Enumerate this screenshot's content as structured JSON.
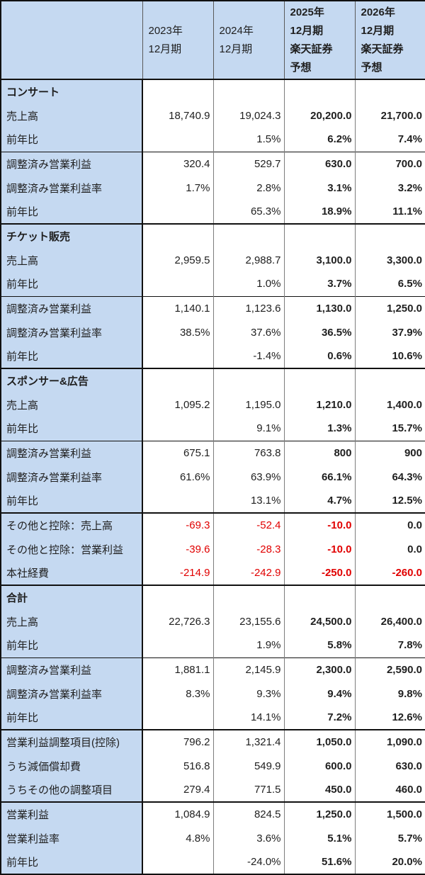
{
  "colors": {
    "label_bg": "#c5d9f1",
    "negative_text": "#e10000",
    "border_dark": "#111111",
    "border_gray": "#7d7d7d"
  },
  "chart_data": {
    "type": "table",
    "title": "",
    "columns": [
      "",
      "2023年12月期",
      "2024年12月期",
      "2025年12月期 楽天証券予想",
      "2026年12月期 楽天証券予想"
    ],
    "header": {
      "cells": [
        {
          "lines": [],
          "bold": false
        },
        {
          "lines": [
            "2023年",
            "12月期"
          ],
          "bold": false
        },
        {
          "lines": [
            "2024年",
            "12月期"
          ],
          "bold": false
        },
        {
          "lines": [
            "2025年",
            "12月期",
            "楽天証券",
            "予想"
          ],
          "bold": true
        },
        {
          "lines": [
            "2026年",
            "12月期",
            "楽天証券",
            "予想"
          ],
          "bold": true
        }
      ]
    },
    "rows": [
      {
        "label": "コンサート",
        "label_bold": true,
        "values": [
          "",
          "",
          "",
          ""
        ],
        "red": [
          0,
          0,
          0,
          0
        ],
        "border_top": "none"
      },
      {
        "label": "売上高",
        "label_bold": false,
        "values": [
          "18,740.9",
          "19,024.3",
          "20,200.0",
          "21,700.0"
        ],
        "red": [
          0,
          0,
          0,
          0
        ],
        "border_top": "none"
      },
      {
        "label": "前年比",
        "label_bold": false,
        "values": [
          "",
          "1.5%",
          "6.2%",
          "7.4%"
        ],
        "red": [
          0,
          0,
          0,
          0
        ],
        "border_top": "none"
      },
      {
        "label": "調整済み営業利益",
        "label_bold": false,
        "values": [
          "320.4",
          "529.7",
          "630.0",
          "700.0"
        ],
        "red": [
          0,
          0,
          0,
          0
        ],
        "border_top": "thin"
      },
      {
        "label": "調整済み営業利益率",
        "label_bold": false,
        "values": [
          "1.7%",
          "2.8%",
          "3.1%",
          "3.2%"
        ],
        "red": [
          0,
          0,
          0,
          0
        ],
        "border_top": "none"
      },
      {
        "label": "前年比",
        "label_bold": false,
        "values": [
          "",
          "65.3%",
          "18.9%",
          "11.1%"
        ],
        "red": [
          0,
          0,
          0,
          0
        ],
        "border_top": "none"
      },
      {
        "label": "チケット販売",
        "label_bold": true,
        "values": [
          "",
          "",
          "",
          ""
        ],
        "red": [
          0,
          0,
          0,
          0
        ],
        "border_top": "thick"
      },
      {
        "label": "売上高",
        "label_bold": false,
        "values": [
          "2,959.5",
          "2,988.7",
          "3,100.0",
          "3,300.0"
        ],
        "red": [
          0,
          0,
          0,
          0
        ],
        "border_top": "none"
      },
      {
        "label": "前年比",
        "label_bold": false,
        "values": [
          "",
          "1.0%",
          "3.7%",
          "6.5%"
        ],
        "red": [
          0,
          0,
          0,
          0
        ],
        "border_top": "none"
      },
      {
        "label": "調整済み営業利益",
        "label_bold": false,
        "values": [
          "1,140.1",
          "1,123.6",
          "1,130.0",
          "1,250.0"
        ],
        "red": [
          0,
          0,
          0,
          0
        ],
        "border_top": "thin"
      },
      {
        "label": "調整済み営業利益率",
        "label_bold": false,
        "values": [
          "38.5%",
          "37.6%",
          "36.5%",
          "37.9%"
        ],
        "red": [
          0,
          0,
          0,
          0
        ],
        "border_top": "none"
      },
      {
        "label": "前年比",
        "label_bold": false,
        "values": [
          "",
          "-1.4%",
          "0.6%",
          "10.6%"
        ],
        "red": [
          0,
          0,
          0,
          0
        ],
        "border_top": "none"
      },
      {
        "label": "スポンサー&広告",
        "label_bold": true,
        "values": [
          "",
          "",
          "",
          ""
        ],
        "red": [
          0,
          0,
          0,
          0
        ],
        "border_top": "thick"
      },
      {
        "label": "売上高",
        "label_bold": false,
        "values": [
          "1,095.2",
          "1,195.0",
          "1,210.0",
          "1,400.0"
        ],
        "red": [
          0,
          0,
          0,
          0
        ],
        "border_top": "none"
      },
      {
        "label": "前年比",
        "label_bold": false,
        "values": [
          "",
          "9.1%",
          "1.3%",
          "15.7%"
        ],
        "red": [
          0,
          0,
          0,
          0
        ],
        "border_top": "none"
      },
      {
        "label": "調整済み営業利益",
        "label_bold": false,
        "values": [
          "675.1",
          "763.8",
          "800",
          "900"
        ],
        "red": [
          0,
          0,
          0,
          0
        ],
        "border_top": "thin"
      },
      {
        "label": "調整済み営業利益率",
        "label_bold": false,
        "values": [
          "61.6%",
          "63.9%",
          "66.1%",
          "64.3%"
        ],
        "red": [
          0,
          0,
          0,
          0
        ],
        "border_top": "none"
      },
      {
        "label": "前年比",
        "label_bold": false,
        "values": [
          "",
          "13.1%",
          "4.7%",
          "12.5%"
        ],
        "red": [
          0,
          0,
          0,
          0
        ],
        "border_top": "none"
      },
      {
        "label": "その他と控除：売上高",
        "label_bold": false,
        "values": [
          "-69.3",
          "-52.4",
          "-10.0",
          "0.0"
        ],
        "red": [
          1,
          1,
          1,
          0
        ],
        "border_top": "thick"
      },
      {
        "label": "その他と控除：営業利益",
        "label_bold": false,
        "values": [
          "-39.6",
          "-28.3",
          "-10.0",
          "0.0"
        ],
        "red": [
          1,
          1,
          1,
          0
        ],
        "border_top": "none"
      },
      {
        "label": "本社経費",
        "label_bold": false,
        "values": [
          "-214.9",
          "-242.9",
          "-250.0",
          "-260.0"
        ],
        "red": [
          1,
          1,
          1,
          1
        ],
        "border_top": "none"
      },
      {
        "label": "合計",
        "label_bold": true,
        "values": [
          "",
          "",
          "",
          ""
        ],
        "red": [
          0,
          0,
          0,
          0
        ],
        "border_top": "thick"
      },
      {
        "label": "売上高",
        "label_bold": false,
        "values": [
          "22,726.3",
          "23,155.6",
          "24,500.0",
          "26,400.0"
        ],
        "red": [
          0,
          0,
          0,
          0
        ],
        "border_top": "none"
      },
      {
        "label": "前年比",
        "label_bold": false,
        "values": [
          "",
          "1.9%",
          "5.8%",
          "7.8%"
        ],
        "red": [
          0,
          0,
          0,
          0
        ],
        "border_top": "none"
      },
      {
        "label": "調整済み営業利益",
        "label_bold": false,
        "values": [
          "1,881.1",
          "2,145.9",
          "2,300.0",
          "2,590.0"
        ],
        "red": [
          0,
          0,
          0,
          0
        ],
        "border_top": "thin"
      },
      {
        "label": "調整済み営業利益率",
        "label_bold": false,
        "values": [
          "8.3%",
          "9.3%",
          "9.4%",
          "9.8%"
        ],
        "red": [
          0,
          0,
          0,
          0
        ],
        "border_top": "none"
      },
      {
        "label": "前年比",
        "label_bold": false,
        "values": [
          "",
          "14.1%",
          "7.2%",
          "12.6%"
        ],
        "red": [
          0,
          0,
          0,
          0
        ],
        "border_top": "none"
      },
      {
        "label": "営業利益調整項目(控除)",
        "label_bold": false,
        "values": [
          "796.2",
          "1,321.4",
          "1,050.0",
          "1,090.0"
        ],
        "red": [
          0,
          0,
          0,
          0
        ],
        "border_top": "thick"
      },
      {
        "label": "うち減価償却費",
        "label_bold": false,
        "values": [
          "516.8",
          "549.9",
          "600.0",
          "630.0"
        ],
        "red": [
          0,
          0,
          0,
          0
        ],
        "border_top": "none"
      },
      {
        "label": "うちその他の調整項目",
        "label_bold": false,
        "values": [
          "279.4",
          "771.5",
          "450.0",
          "460.0"
        ],
        "red": [
          0,
          0,
          0,
          0
        ],
        "border_top": "none"
      },
      {
        "label": "営業利益",
        "label_bold": false,
        "values": [
          "1,084.9",
          "824.5",
          "1,250.0",
          "1,500.0"
        ],
        "red": [
          0,
          0,
          0,
          0
        ],
        "border_top": "thick"
      },
      {
        "label": "営業利益率",
        "label_bold": false,
        "values": [
          "4.8%",
          "3.6%",
          "5.1%",
          "5.7%"
        ],
        "red": [
          0,
          0,
          0,
          0
        ],
        "border_top": "none"
      },
      {
        "label": "前年比",
        "label_bold": false,
        "values": [
          "",
          "-24.0%",
          "51.6%",
          "20.0%"
        ],
        "red": [
          0,
          0,
          0,
          0
        ],
        "border_top": "none"
      }
    ]
  }
}
